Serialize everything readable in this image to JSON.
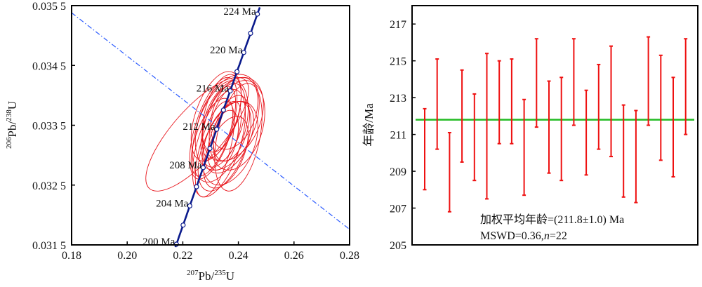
{
  "chart_data": [
    {
      "type": "scatter",
      "subtype": "concordia",
      "xlabel_parts": {
        "sup1": "207",
        "base1": "Pb/",
        "sup2": "235",
        "base2": "U"
      },
      "ylabel_parts": {
        "sup1": "206",
        "base1": "Pb/",
        "sup2": "238",
        "base2": "U"
      },
      "xlim": [
        0.18,
        0.28
      ],
      "ylim": [
        0.0315,
        0.0355
      ],
      "x_ticks": [
        0.18,
        0.2,
        0.22,
        0.24,
        0.26,
        0.28
      ],
      "x_tick_labels": [
        "0.18",
        "0.20",
        "0.22",
        "0.24",
        "0.26",
        "0.28"
      ],
      "y_ticks": [
        0.0315,
        0.0325,
        0.0335,
        0.0345,
        0.0355
      ],
      "y_tick_labels": [
        "0.031 5",
        "0.032 5",
        "0.033 5",
        "0.034 5",
        "0.035 5"
      ],
      "concordia": {
        "age_range_ma": [
          200,
          224
        ],
        "marker_step_ma": 2,
        "labeled_ages_ma": [
          200,
          204,
          208,
          212,
          216,
          220,
          224
        ],
        "labels": [
          "200 Ma",
          "204 Ma",
          "208 Ma",
          "212 Ma",
          "216 Ma",
          "220 Ma",
          "224 Ma"
        ],
        "line_color": "#0a1a8c"
      },
      "discordia": {
        "points": [
          [
            0.18,
            0.03538
          ],
          [
            0.28,
            0.03176
          ]
        ],
        "color": "#2b5bff",
        "style": "dash-dot"
      },
      "ellipse_color": "#e8141b",
      "ellipses": [
        {
          "x": 0.2252,
          "y": 0.03335,
          "ex": 0.0185,
          "ey": 0.00095,
          "rho": 0.78
        },
        {
          "x": 0.2335,
          "y": 0.0334,
          "ex": 0.01,
          "ey": 0.00085,
          "rho": 0.45
        },
        {
          "x": 0.236,
          "y": 0.03355,
          "ex": 0.0115,
          "ey": 0.0008,
          "rho": 0.4
        },
        {
          "x": 0.233,
          "y": 0.0332,
          "ex": 0.0095,
          "ey": 0.0009,
          "rho": 0.55
        },
        {
          "x": 0.238,
          "y": 0.0336,
          "ex": 0.011,
          "ey": 0.0007,
          "rho": 0.35
        },
        {
          "x": 0.2345,
          "y": 0.0335,
          "ex": 0.008,
          "ey": 0.0007,
          "rho": 0.5
        },
        {
          "x": 0.231,
          "y": 0.03345,
          "ex": 0.0085,
          "ey": 0.00085,
          "rho": 0.6
        },
        {
          "x": 0.2395,
          "y": 0.0335,
          "ex": 0.01,
          "ey": 0.00075,
          "rho": 0.3
        },
        {
          "x": 0.2365,
          "y": 0.0333,
          "ex": 0.009,
          "ey": 0.0006,
          "rho": 0.45
        },
        {
          "x": 0.232,
          "y": 0.03365,
          "ex": 0.009,
          "ey": 0.00075,
          "rho": 0.5
        },
        {
          "x": 0.235,
          "y": 0.03315,
          "ex": 0.0095,
          "ey": 0.00075,
          "rho": 0.55
        },
        {
          "x": 0.24,
          "y": 0.0333,
          "ex": 0.0085,
          "ey": 0.0009,
          "rho": 0.4
        },
        {
          "x": 0.234,
          "y": 0.0337,
          "ex": 0.007,
          "ey": 0.00065,
          "rho": 0.45
        },
        {
          "x": 0.2305,
          "y": 0.0333,
          "ex": 0.0075,
          "ey": 0.00065,
          "rho": 0.6
        },
        {
          "x": 0.2375,
          "y": 0.03345,
          "ex": 0.0065,
          "ey": 0.00055,
          "rho": 0.4
        },
        {
          "x": 0.2355,
          "y": 0.03305,
          "ex": 0.008,
          "ey": 0.0006,
          "rho": 0.5
        },
        {
          "x": 0.233,
          "y": 0.03355,
          "ex": 0.006,
          "ey": 0.0006,
          "rho": 0.55
        },
        {
          "x": 0.2385,
          "y": 0.0337,
          "ex": 0.0085,
          "ey": 0.0006,
          "rho": 0.35
        },
        {
          "x": 0.2315,
          "y": 0.0331,
          "ex": 0.007,
          "ey": 0.0008,
          "rho": 0.6
        },
        {
          "x": 0.236,
          "y": 0.0334,
          "ex": 0.005,
          "ey": 0.0005,
          "rho": 0.5
        },
        {
          "x": 0.2345,
          "y": 0.03325,
          "ex": 0.0055,
          "ey": 0.0005,
          "rho": 0.45
        },
        {
          "x": 0.237,
          "y": 0.0332,
          "ex": 0.01,
          "ey": 0.0007,
          "rho": 0.4
        }
      ]
    },
    {
      "type": "errorbar",
      "ylabel": "年龄/Ma",
      "ylim": [
        205,
        218
      ],
      "y_ticks": [
        205,
        207,
        209,
        211,
        213,
        215,
        217
      ],
      "y_tick_labels": [
        "205",
        "207",
        "209",
        "211",
        "213",
        "215",
        "217"
      ],
      "bar_color": "#ee1111",
      "mean_line_color": "#22bb22",
      "weighted_mean": 211.8,
      "bars": [
        {
          "low": 208.0,
          "high": 212.4
        },
        {
          "low": 210.2,
          "high": 215.1
        },
        {
          "low": 206.8,
          "high": 211.1
        },
        {
          "low": 209.5,
          "high": 214.5
        },
        {
          "low": 208.5,
          "high": 213.2
        },
        {
          "low": 207.5,
          "high": 215.4
        },
        {
          "low": 210.5,
          "high": 215.0
        },
        {
          "low": 210.5,
          "high": 215.1
        },
        {
          "low": 207.7,
          "high": 212.9
        },
        {
          "low": 211.4,
          "high": 216.2
        },
        {
          "low": 208.9,
          "high": 213.9
        },
        {
          "low": 208.5,
          "high": 214.1
        },
        {
          "low": 211.5,
          "high": 216.2
        },
        {
          "low": 208.8,
          "high": 213.4
        },
        {
          "low": 210.2,
          "high": 214.8
        },
        {
          "low": 209.8,
          "high": 215.8
        },
        {
          "low": 207.6,
          "high": 212.6
        },
        {
          "low": 207.3,
          "high": 212.3
        },
        {
          "low": 211.5,
          "high": 216.3
        },
        {
          "low": 209.6,
          "high": 215.3
        },
        {
          "low": 208.7,
          "high": 214.1
        },
        {
          "low": 211.0,
          "high": 216.2
        }
      ],
      "annotation_line1": "加权平均年龄=(211.8±1.0) Ma",
      "annotation_line2_prefix": "MSWD=0.36,",
      "annotation_line2_italic": "n",
      "annotation_line2_suffix": "=22"
    }
  ]
}
